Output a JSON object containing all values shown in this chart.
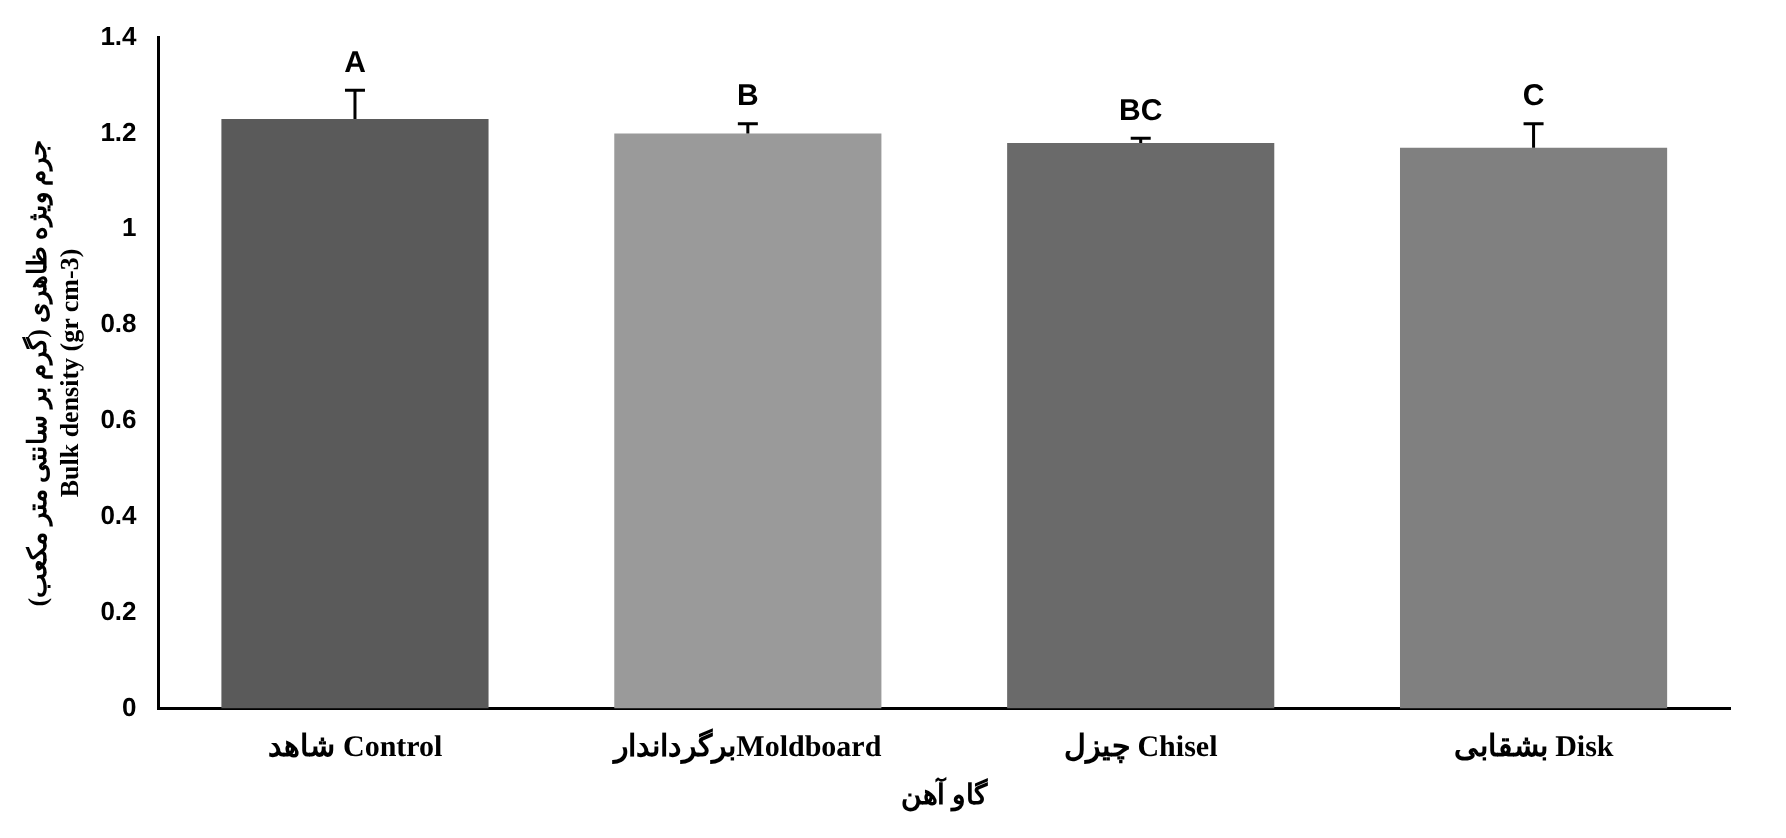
{
  "chart_data": {
    "type": "bar",
    "xlabel": "گاو آهن",
    "ylabel": "جرم ویژه ظاهری (گرم بر سانتی متر مکعب)\nBulk density (gr cm-3)",
    "categories": [
      "شاهد Control",
      "برگرداندارMoldboard",
      "چیزل Chisel",
      "بشقابی Disk"
    ],
    "values": [
      1.23,
      1.2,
      1.18,
      1.17
    ],
    "errors": [
      [
        1.23,
        1.29
      ],
      [
        1.2,
        1.22
      ],
      [
        1.18,
        1.19
      ],
      [
        1.17,
        1.22
      ]
    ],
    "colors": [
      "#5a5a5a",
      "#9a9a9a",
      "#6a6a6a",
      "#808080"
    ],
    "annotations": [
      {
        "text": "A",
        "x": "شاهد Control",
        "y": 1.29
      },
      {
        "text": "B",
        "x": "برگرداندارMoldboard",
        "y": 1.22
      },
      {
        "text": "BC",
        "x": "چیزل Chisel",
        "y": 1.19
      },
      {
        "text": "C",
        "x": "بشقابی Disk",
        "y": 1.22
      }
    ],
    "ylim": [
      0,
      1.4
    ],
    "yticks": [
      0,
      0.2,
      0.4,
      0.6,
      0.8,
      1,
      1.2,
      1.4
    ],
    "grid": false,
    "legend": false
  }
}
